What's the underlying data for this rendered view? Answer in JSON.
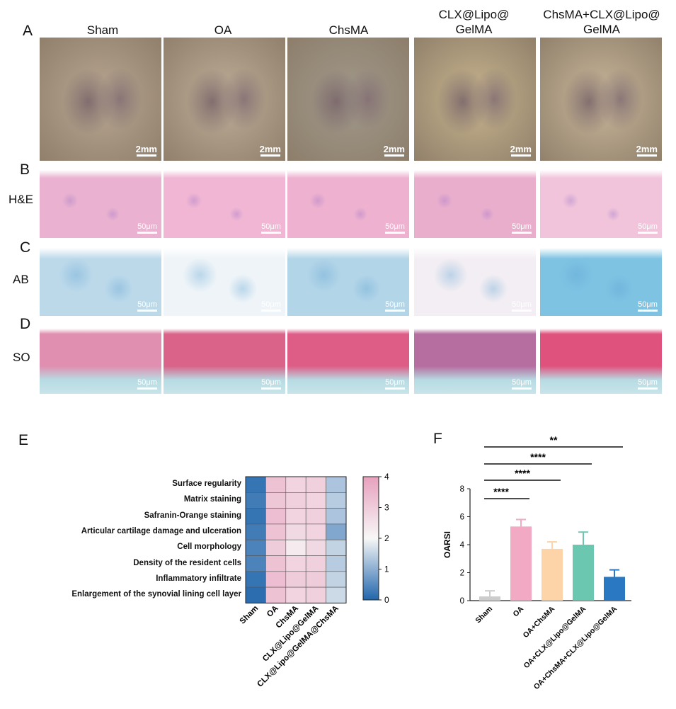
{
  "panels": {
    "A": "A",
    "B": "B",
    "C": "C",
    "D": "D",
    "E": "E",
    "F": "F"
  },
  "column_titles": [
    {
      "line1": "Sham",
      "line2": ""
    },
    {
      "line1": "OA",
      "line2": ""
    },
    {
      "line1": "ChsMA",
      "line2": ""
    },
    {
      "line1": "CLX@Lipo@",
      "line2": "GelMA"
    },
    {
      "line1": "ChsMA+CLX@Lipo@",
      "line2": "GelMA"
    }
  ],
  "row_labels": {
    "B": "H&E",
    "C": "AB",
    "D": "SO"
  },
  "scale_bars": {
    "A": "2mm",
    "histology": "50μm"
  },
  "image_colors": {
    "A": [
      "#b9a792",
      "#bfae98",
      "#a29a8c",
      "#c7b48e",
      "#c9b79a"
    ],
    "B": [
      "#eab2d0",
      "#f0b6d3",
      "#eeb1cf",
      "#eaaecd",
      "#f1c4db"
    ],
    "C": [
      "#bcd9ea",
      "#eef4f8",
      "#b3d5e8",
      "#f3eef3",
      "#7fc3e3"
    ],
    "D": [
      "#e08fb0",
      "#d96389",
      "#de5d87",
      "#b66da0",
      "#e0527e"
    ]
  },
  "chart_data": [
    {
      "type": "heatmap",
      "rows": [
        "Surface regularity",
        "Matrix staining",
        "Safranin-Orange staining",
        "Articular cartilage damage and ulceration",
        "Cell morphology",
        "Density of the resident cells",
        "Inflammatory infiltrate",
        "Enlargement of the synovial lining cell layer"
      ],
      "columns": [
        "Sham",
        "OA",
        "ChsMA",
        "CLX@Lipo@GelMA",
        "CLX@Lipo@GelMA@ChsMA"
      ],
      "values": [
        [
          0.2,
          3.2,
          2.8,
          2.9,
          1.3
        ],
        [
          0.3,
          3.1,
          2.9,
          2.8,
          1.4
        ],
        [
          0.2,
          3.3,
          2.8,
          2.9,
          1.3
        ],
        [
          0.3,
          3.2,
          2.7,
          2.8,
          0.9
        ],
        [
          0.4,
          3.0,
          2.3,
          2.7,
          1.5
        ],
        [
          0.4,
          3.2,
          2.8,
          2.9,
          1.4
        ],
        [
          0.2,
          3.3,
          3.0,
          3.0,
          1.5
        ],
        [
          0.1,
          3.2,
          2.8,
          2.9,
          1.6
        ]
      ],
      "colorbar": {
        "min": 0,
        "max": 4,
        "ticks": [
          "0",
          "1",
          "2",
          "3",
          "4"
        ],
        "colors": {
          "low": "#2166ac",
          "mid": "#f7f7f7",
          "high": "#e7a0bd"
        }
      }
    },
    {
      "type": "bar",
      "ylabel": "OARSI",
      "ylim": [
        0,
        8
      ],
      "yticks": [
        "0",
        "2",
        "4",
        "6",
        "8"
      ],
      "categories": [
        "Sham",
        "OA",
        "OA+ChsMA",
        "OA+CLX@Lipo@GelMA",
        "OA+ChsMA+CLX@Lipo@GelMA"
      ],
      "values": [
        0.3,
        5.3,
        3.7,
        4.0,
        1.7
      ],
      "errors": [
        0.4,
        0.5,
        0.5,
        0.9,
        0.5
      ],
      "colors": [
        "#cccccc",
        "#f1a9c4",
        "#fdd4a8",
        "#6cc7b0",
        "#2a78c1"
      ],
      "significance": [
        {
          "from": 0,
          "to": 1,
          "label": "****"
        },
        {
          "from": 0,
          "to": 2,
          "label": "****"
        },
        {
          "from": 0,
          "to": 3,
          "label": "****"
        },
        {
          "from": 0,
          "to": 4,
          "label": "**"
        }
      ]
    }
  ]
}
